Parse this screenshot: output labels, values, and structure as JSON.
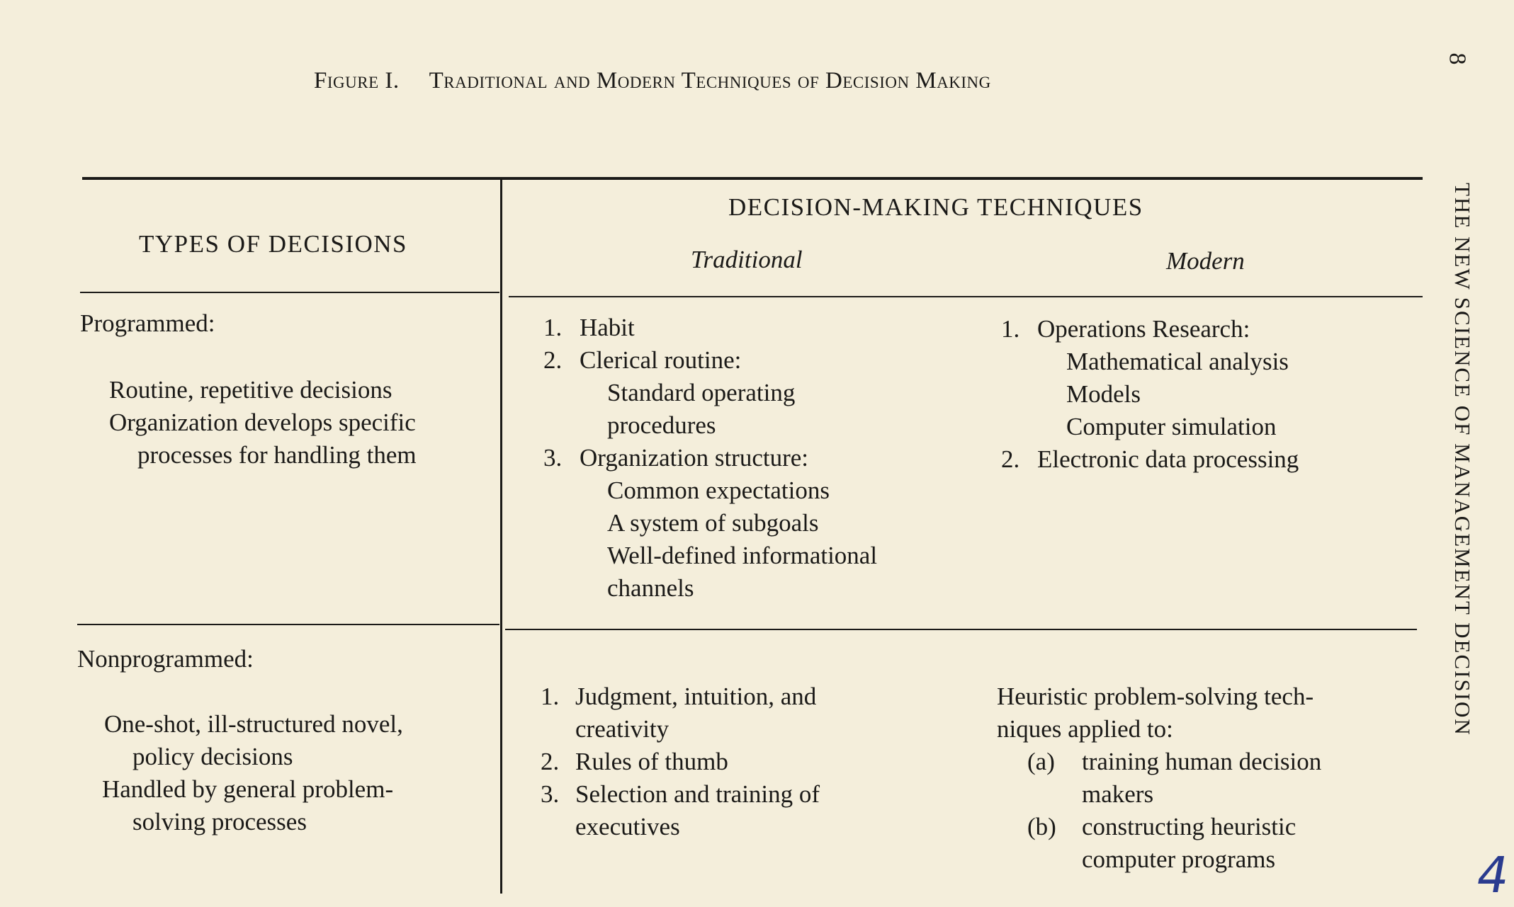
{
  "figure": {
    "label": "Figure I.",
    "title": "Traditional and Modern Techniques of Decision Making"
  },
  "table": {
    "col_header_left": "TYPES OF DECISIONS",
    "col_header_group": "DECISION-MAKING TECHNIQUES",
    "col_header_traditional": "Traditional",
    "col_header_modern": "Modern",
    "rows": [
      {
        "type": "Programmed:",
        "description": [
          "Routine, repetitive decisions",
          "Organization develops specific",
          "processes for handling them"
        ],
        "traditional": [
          {
            "num": "1.",
            "text": "Habit"
          },
          {
            "num": "2.",
            "text": "Clerical routine:"
          },
          {
            "num": "",
            "text": "Standard  operating"
          },
          {
            "num": "",
            "text": "procedures"
          },
          {
            "num": "3.",
            "text": "Organization structure:"
          },
          {
            "num": "",
            "text": "Common expectations"
          },
          {
            "num": "",
            "text": "A system of subgoals"
          },
          {
            "num": "",
            "text": "Well-defined  informational"
          },
          {
            "num": "",
            "text": "channels"
          }
        ],
        "modern": [
          {
            "num": "1.",
            "text": "Operations Research:"
          },
          {
            "num": "",
            "text": "Mathematical analysis"
          },
          {
            "num": "",
            "text": "Models"
          },
          {
            "num": "",
            "text": "Computer  simulation"
          },
          {
            "num": "2.",
            "text": "Electronic data processing"
          }
        ]
      },
      {
        "type": "Nonprogrammed:",
        "description": [
          "One-shot,  ill-structured  novel,",
          "policy decisions",
          "Handled by general problem-",
          "solving processes"
        ],
        "traditional": [
          {
            "num": "1.",
            "text": "Judgment,  intuition,  and"
          },
          {
            "num": "",
            "text": "creativity"
          },
          {
            "num": "2.",
            "text": "Rules of thumb"
          },
          {
            "num": "3.",
            "text": "Selection  and  training  of"
          },
          {
            "num": "",
            "text": "executives"
          }
        ],
        "modern": [
          {
            "num": "",
            "text": "Heuristic  problem-solving  tech-"
          },
          {
            "num": "",
            "text": "niques applied to:"
          },
          {
            "num": "(a)",
            "text": "training  human  decision"
          },
          {
            "num": "",
            "text": "makers"
          },
          {
            "num": "(b)",
            "text": "constructing  heuristic"
          },
          {
            "num": "",
            "text": "computer programs"
          }
        ]
      }
    ]
  },
  "running_head": "THE NEW SCIENCE OF MANAGEMENT DECISION",
  "page_number": "8",
  "handwritten_mark": "4",
  "colors": {
    "paper": "#f4eedb",
    "ink": "#1b1a18",
    "pen": "#2a3b8f"
  }
}
